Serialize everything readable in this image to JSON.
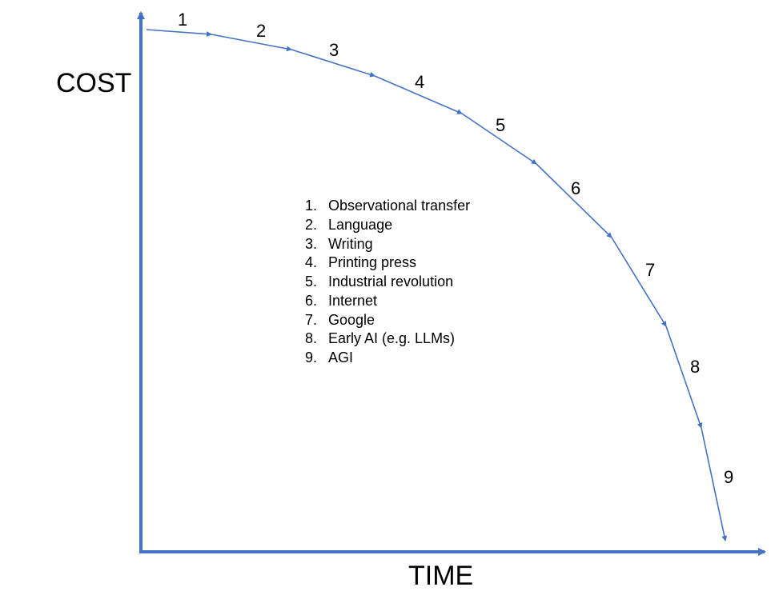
{
  "diagram": {
    "axes": {
      "y_label": "COST",
      "x_label": "TIME",
      "color": "#4472C4"
    },
    "curve_color": "#4472C4",
    "segments": [
      {
        "number": "1"
      },
      {
        "number": "2"
      },
      {
        "number": "3"
      },
      {
        "number": "4"
      },
      {
        "number": "5"
      },
      {
        "number": "6"
      },
      {
        "number": "7"
      },
      {
        "number": "8"
      },
      {
        "number": "9"
      }
    ],
    "legend": [
      {
        "marker": "1.",
        "text": "Observational transfer"
      },
      {
        "marker": "2.",
        "text": "Language"
      },
      {
        "marker": "3.",
        "text": "Writing"
      },
      {
        "marker": "4.",
        "text": "Printing press"
      },
      {
        "marker": "5.",
        "text": "Industrial revolution"
      },
      {
        "marker": "6.",
        "text": "Internet"
      },
      {
        "marker": "7.",
        "text": "Google"
      },
      {
        "marker": "8.",
        "text": "Early AI (e.g. LLMs)"
      },
      {
        "marker": "9.",
        "text": "AGI"
      }
    ]
  }
}
